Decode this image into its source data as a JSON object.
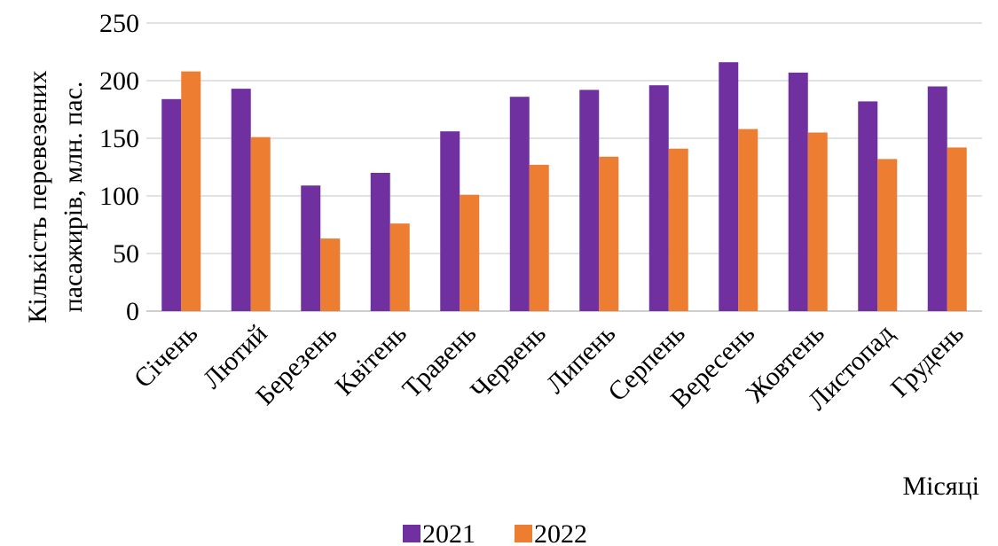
{
  "chart_data": {
    "type": "bar",
    "title": "",
    "xlabel": "Місяці",
    "ylabel_lines": [
      "Кількість перевезених",
      "пасажирів, млн. пас."
    ],
    "ylim": [
      0,
      250
    ],
    "yticks": [
      0,
      50,
      100,
      150,
      200,
      250
    ],
    "grid": true,
    "legend_position": "bottom",
    "categories": [
      "Січень",
      "Лютий",
      "Березень",
      "Квітень",
      "Травень",
      "Червень",
      "Липень",
      "Серпень",
      "Вересень",
      "Жовтень",
      "Листопад",
      "Грудень"
    ],
    "series": [
      {
        "name": "2021",
        "color": "#7030a0",
        "values": [
          184,
          193,
          109,
          120,
          156,
          186,
          192,
          196,
          216,
          207,
          182,
          195
        ]
      },
      {
        "name": "2022",
        "color": "#ed7d31",
        "values": [
          208,
          151,
          63,
          76,
          101,
          127,
          134,
          141,
          158,
          155,
          132,
          142
        ]
      }
    ]
  }
}
